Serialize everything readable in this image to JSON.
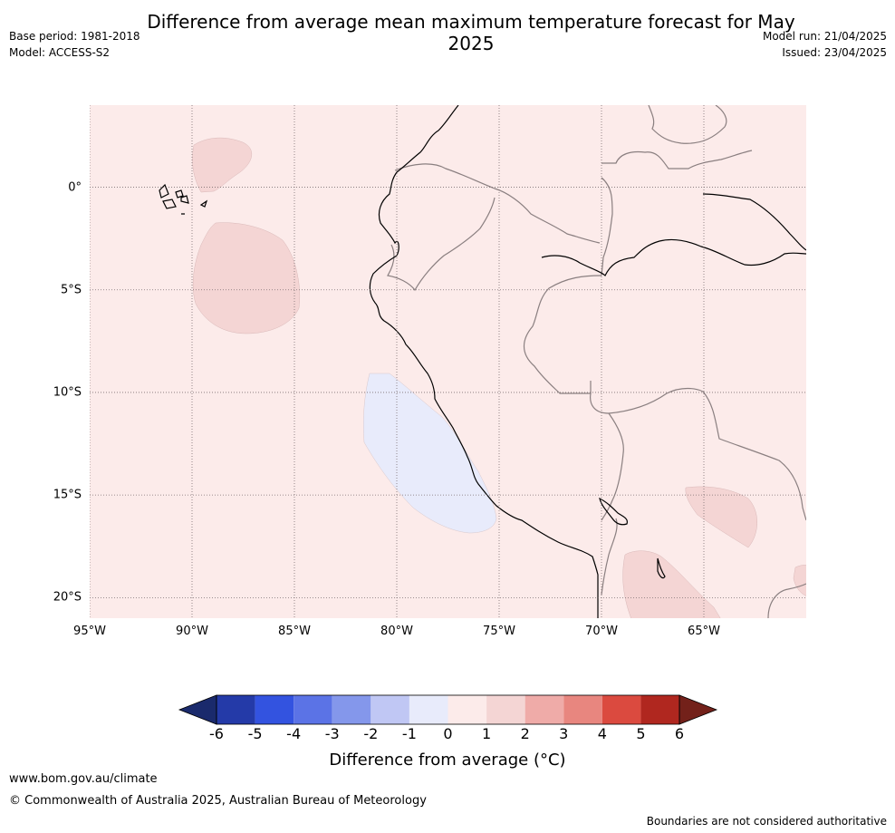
{
  "title": "Difference from average mean maximum temperature forecast for May 2025",
  "base_period": "Base period: 1981-2018",
  "model": "Model: ACCESS-S2",
  "model_run": "Model run: 21/04/2025",
  "issued": "Issued: 23/04/2025",
  "map": {
    "lat_labels": [
      "0°",
      "5°S",
      "10°S",
      "15°S",
      "20°S"
    ],
    "lat_values": [
      0,
      -5,
      -10,
      -15,
      -20
    ],
    "lon_labels": [
      "95°W",
      "90°W",
      "85°W",
      "80°W",
      "75°W",
      "70°W",
      "65°W"
    ],
    "lon_values": [
      -95,
      -90,
      -85,
      -80,
      -75,
      -70,
      -65
    ],
    "extent": {
      "lon": [
        -95,
        -60
      ],
      "lat": [
        -21,
        4
      ]
    },
    "background_anomaly_class": "0 to 1",
    "colors": {
      "background": "#fcebea",
      "warm_patch": "#f4d5d4",
      "cool_patch": "#e8ebfb",
      "coast": "#000000",
      "border": "#8a7f80",
      "grid": "#7b6e70"
    }
  },
  "colorbar": {
    "ticks": [
      "-6",
      "-5",
      "-4",
      "-3",
      "-2",
      "-1",
      "0",
      "1",
      "2",
      "3",
      "4",
      "5",
      "6"
    ],
    "colors": [
      "#243aa8",
      "#3353e0",
      "#5b73e6",
      "#8497eb",
      "#c0c7f4",
      "#e8ebfb",
      "#fcebea",
      "#f4d5d4",
      "#efaba8",
      "#e8867f",
      "#db4a3f",
      "#b0271f"
    ],
    "under_color": "#1a2a6c",
    "over_color": "#73211a",
    "label": "Difference from average (°C)"
  },
  "footer": {
    "url": "www.bom.gov.au/climate",
    "copyright": "© Commonwealth of Australia 2025, Australian Bureau of Meteorology",
    "note": "Boundaries are not considered authoritative"
  }
}
